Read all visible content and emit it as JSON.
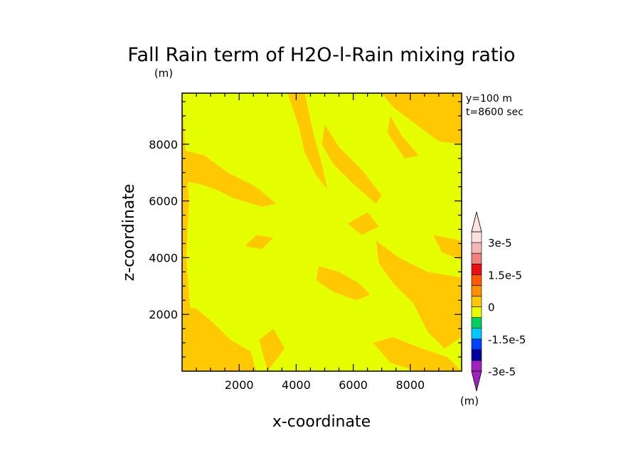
{
  "chart_data": {
    "type": "heatmap",
    "title": "Fall Rain term of H2O-l-Rain mixing ratio",
    "title_unit": "(m)",
    "xlabel": "x-coordinate",
    "ylabel": "z-coordinate",
    "xlim": [
      0,
      9800
    ],
    "ylim": [
      0,
      9800
    ],
    "xticks": [
      2000,
      4000,
      6000,
      8000
    ],
    "yticks": [
      2000,
      4000,
      6000,
      8000
    ],
    "annotations": [
      "y=100 m",
      "t=8600 sec"
    ],
    "colorbar": {
      "unit": "(m)",
      "levels": [
        -3e-05,
        -2.5e-05,
        -2e-05,
        -1.5e-05,
        -1e-05,
        -5e-06,
        0,
        5e-06,
        1e-05,
        1.5e-05,
        2e-05,
        2.5e-05,
        3e-05
      ],
      "tick_labels": [
        "3e-5",
        "1.5e-5",
        "0",
        "-1.5e-5",
        "-3e-5"
      ],
      "tick_values": [
        3e-05,
        1.5e-05,
        0,
        -1.5e-05,
        -3e-05
      ],
      "colors_low_to_high": [
        "#a020c0",
        "#0000a0",
        "#0040ff",
        "#00c8ff",
        "#00d060",
        "#e6ff00",
        "#ffc800",
        "#ff9000",
        "#ff5a00",
        "#e81010",
        "#f08080",
        "#f5b6b6",
        "#ffe0e0"
      ]
    },
    "field": {
      "background_value_range": [
        -5e-06,
        0
      ],
      "background_color": "#e6ff00",
      "patch_value_range": [
        0,
        5e-06
      ],
      "patch_color": "#ffc800",
      "description_regions": [
        {
          "x": [
            0,
            400
          ],
          "z": [
            0,
            9800
          ]
        },
        {
          "x": [
            1000,
            3500
          ],
          "z": [
            5800,
            8000
          ]
        },
        {
          "x": [
            3600,
            5500
          ],
          "z": [
            6500,
            9800
          ]
        },
        {
          "x": [
            5200,
            7000
          ],
          "z": [
            6000,
            9000
          ]
        },
        {
          "x": [
            7200,
            9800
          ],
          "z": [
            7500,
            9800
          ]
        },
        {
          "x": [
            7000,
            9800
          ],
          "z": [
            1500,
            4500
          ]
        },
        {
          "x": [
            0,
            2600
          ],
          "z": [
            0,
            2500
          ]
        },
        {
          "x": [
            4500,
            6500
          ],
          "z": [
            2500,
            3500
          ]
        }
      ]
    }
  }
}
